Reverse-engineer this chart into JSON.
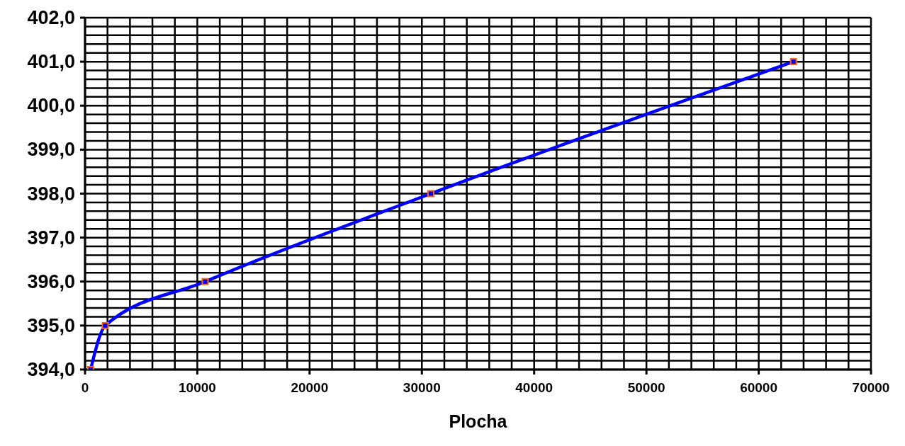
{
  "chart_data": {
    "type": "line",
    "xlabel": "Plocha",
    "x": [
      500,
      1800,
      10700,
      30800,
      63100
    ],
    "series": [
      {
        "color": "#0000ff",
        "values": [
          394,
          395,
          396,
          398,
          401
        ]
      }
    ],
    "marker": "square",
    "grid": true,
    "legend": false,
    "xlim": [
      0,
      70000
    ],
    "xticks": [
      0,
      {
        "value": 2000,
        "label": null
      },
      {
        "value": 4000,
        "label": null
      },
      {
        "value": 6000,
        "label": null
      },
      {
        "value": 8000,
        "label": null
      },
      10000,
      {
        "value": 12000,
        "label": null
      },
      {
        "value": 14000,
        "label": null
      },
      {
        "value": 16000,
        "label": null
      },
      {
        "value": 18000,
        "label": null
      },
      20000,
      {
        "value": 22000,
        "label": null
      },
      {
        "value": 24000,
        "label": null
      },
      {
        "value": 26000,
        "label": null
      },
      {
        "value": 28000,
        "label": null
      },
      30000,
      {
        "value": 32000,
        "label": null
      },
      {
        "value": 34000,
        "label": null
      },
      {
        "value": 36000,
        "label": null
      },
      {
        "value": 38000,
        "label": null
      },
      40000,
      {
        "value": 42000,
        "label": null
      },
      {
        "value": 44000,
        "label": null
      },
      {
        "value": 46000,
        "label": null
      },
      {
        "value": 48000,
        "label": null
      },
      50000,
      {
        "value": 52000,
        "label": null
      },
      {
        "value": 54000,
        "label": null
      },
      {
        "value": 56000,
        "label": null
      },
      {
        "value": 58000,
        "label": null
      },
      60000,
      {
        "value": 62000,
        "label": null
      },
      {
        "value": 64000,
        "label": null
      },
      {
        "value": 66000,
        "label": null
      },
      {
        "value": 68000,
        "label": null
      },
      70000
    ],
    "ylim": [
      394,
      402
    ],
    "yticks": [
      {
        "value": 394,
        "label": "394,0"
      },
      {
        "value": 394.2,
        "label": null
      },
      {
        "value": 394.4,
        "label": null
      },
      {
        "value": 394.6,
        "label": null
      },
      {
        "value": 394.8,
        "label": null
      },
      {
        "value": 395,
        "label": "395,0"
      },
      {
        "value": 395.2,
        "label": null
      },
      {
        "value": 395.4,
        "label": null
      },
      {
        "value": 395.6,
        "label": null
      },
      {
        "value": 395.8,
        "label": null
      },
      {
        "value": 396,
        "label": "396,0"
      },
      {
        "value": 396.2,
        "label": null
      },
      {
        "value": 396.4,
        "label": null
      },
      {
        "value": 396.6,
        "label": null
      },
      {
        "value": 396.8,
        "label": null
      },
      {
        "value": 397,
        "label": "397,0"
      },
      {
        "value": 397.2,
        "label": null
      },
      {
        "value": 397.4,
        "label": null
      },
      {
        "value": 397.6,
        "label": null
      },
      {
        "value": 397.8,
        "label": null
      },
      {
        "value": 398,
        "label": "398,0"
      },
      {
        "value": 398.2,
        "label": null
      },
      {
        "value": 398.4,
        "label": null
      },
      {
        "value": 398.6,
        "label": null
      },
      {
        "value": 398.8,
        "label": null
      },
      {
        "value": 399,
        "label": "399,0"
      },
      {
        "value": 399.2,
        "label": null
      },
      {
        "value": 399.4,
        "label": null
      },
      {
        "value": 399.6,
        "label": null
      },
      {
        "value": 399.8,
        "label": null
      },
      {
        "value": 400,
        "label": "400,0"
      },
      {
        "value": 400.2,
        "label": null
      },
      {
        "value": 400.4,
        "label": null
      },
      {
        "value": 400.6,
        "label": null
      },
      {
        "value": 400.8,
        "label": null
      },
      {
        "value": 401,
        "label": "401,0"
      },
      {
        "value": 401.2,
        "label": null
      },
      {
        "value": 401.4,
        "label": null
      },
      {
        "value": 401.6,
        "label": null
      },
      {
        "value": 401.8,
        "label": null
      },
      {
        "value": 402,
        "label": "402,0"
      }
    ]
  }
}
